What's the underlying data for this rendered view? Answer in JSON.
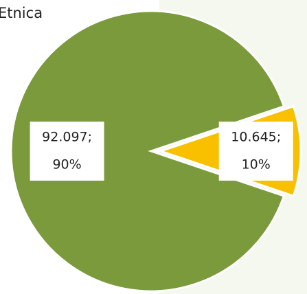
{
  "chart_data": {
    "type": "pie",
    "title": "Etnica",
    "values": [
      92097,
      10645
    ],
    "value_labels": [
      "92.097;",
      "10.645;"
    ],
    "percents": [
      90,
      10
    ],
    "percent_labels": [
      "90%",
      "10%"
    ],
    "colors": [
      "#7a9a3c",
      "#f9c000"
    ],
    "exploded": [
      false,
      true
    ]
  }
}
